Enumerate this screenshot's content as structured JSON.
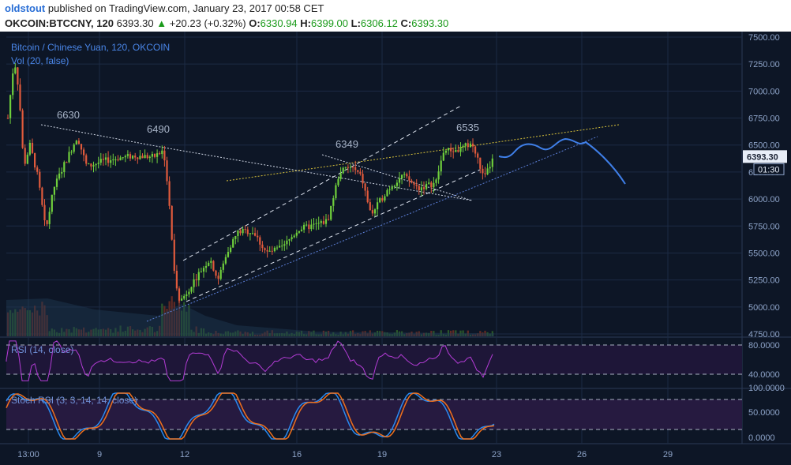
{
  "header": {
    "author": "oldstout",
    "published_text": "published on TradingView.com, January 23, 2017 00:58 CET",
    "symbol": "OKCOIN:BTCCNY, 120",
    "last": "6393.30",
    "change": "+20.23 (+0.32%)",
    "open_label": "O:",
    "open": "6330.94",
    "high_label": "H:",
    "high": "6399.00",
    "low_label": "L:",
    "low": "6306.12",
    "close_label": "C:",
    "close": "6393.30"
  },
  "colors": {
    "background": "#0d1626",
    "grid": "#1c2a44",
    "up": "#6fcf3c",
    "down": "#e05a3c",
    "axis_text": "#8ea4c9",
    "rsi": "#b43cd6",
    "stoch_k": "#2a8af0",
    "stoch_d": "#f0701c",
    "forecast": "#3f7fe8",
    "price_badge": "#e8eef8"
  },
  "main_pane": {
    "title": "Bitcoin / Chinese Yuan, 120, OKCOIN",
    "volume_label": "Vol (20, false)",
    "price_ticks": [
      "7500.00",
      "7250.00",
      "7000.00",
      "6750.00",
      "6500.00",
      "6250.00",
      "6000.00",
      "5750.00",
      "5500.00",
      "5250.00",
      "5000.00",
      "4750.00"
    ],
    "last_price": "6393.30",
    "countdown": "01:30",
    "annotations": [
      "6630",
      "6490",
      "6349",
      "6535"
    ]
  },
  "rsi_pane": {
    "title": "RSI (14, close)",
    "ticks": [
      "80.0000",
      "40.0000"
    ]
  },
  "stoch_pane": {
    "title": "Stoch RSI (3, 3, 14, 14, close)",
    "ticks": [
      "100.0000",
      "50.0000",
      "0.0000"
    ]
  },
  "time_axis": [
    "13:00",
    "9",
    "12",
    "16",
    "19",
    "23",
    "26",
    "29"
  ],
  "chart_data": {
    "type": "line",
    "title": "Bitcoin / Chinese Yuan, 120, OKCOIN",
    "ylim": [
      4750,
      7500
    ],
    "series": [
      {
        "name": "OKCOIN:BTCCNY, 120",
        "x": [
          "13:00",
          "9",
          "12",
          "16",
          "19",
          "23"
        ],
        "values": [
          6900,
          6400,
          5250,
          5700,
          6150,
          6393.3
        ]
      }
    ],
    "levels": [
      6630,
      6490,
      6349,
      6535
    ],
    "last_bar": {
      "open": 6330.94,
      "high": 6399.0,
      "low": 6306.12,
      "close": 6393.3
    }
  }
}
